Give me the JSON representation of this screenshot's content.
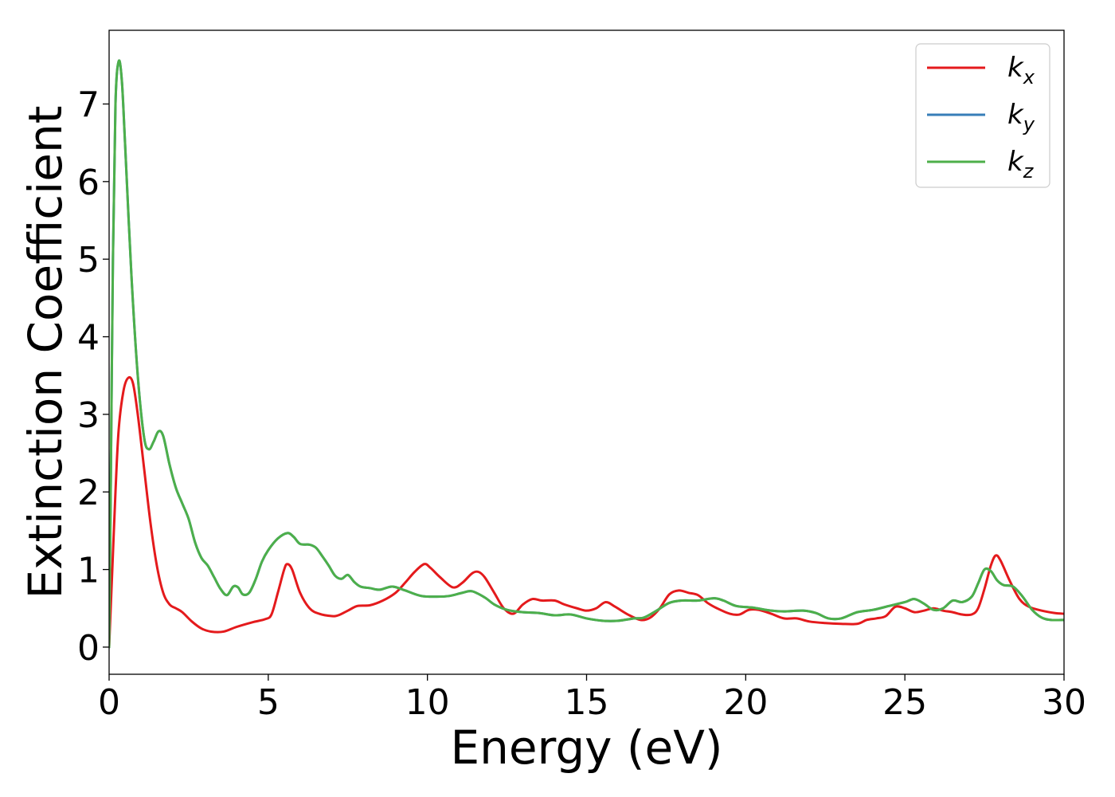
{
  "chart_data": {
    "type": "line",
    "title": "",
    "xlabel": "Energy (eV)",
    "ylabel": "Extinction Coefficient",
    "xlim": [
      0,
      30
    ],
    "ylim": [
      -0.35,
      7.95
    ],
    "xticks": [
      0,
      5,
      10,
      15,
      20,
      25,
      30
    ],
    "yticks": [
      0,
      1,
      2,
      3,
      4,
      5,
      6,
      7
    ],
    "grid": false,
    "legend_position": "top-right",
    "series": [
      {
        "name": "k",
        "subscript": "x",
        "color": "#e41a1c",
        "points": [
          [
            0,
            0
          ],
          [
            0.1,
            1.0
          ],
          [
            0.2,
            2.0
          ],
          [
            0.3,
            2.8
          ],
          [
            0.45,
            3.3
          ],
          [
            0.6,
            3.47
          ],
          [
            0.75,
            3.4
          ],
          [
            0.9,
            3.0
          ],
          [
            1.1,
            2.3
          ],
          [
            1.3,
            1.6
          ],
          [
            1.5,
            1.05
          ],
          [
            1.7,
            0.7
          ],
          [
            1.9,
            0.55
          ],
          [
            2.1,
            0.5
          ],
          [
            2.3,
            0.45
          ],
          [
            2.6,
            0.33
          ],
          [
            2.9,
            0.24
          ],
          [
            3.2,
            0.2
          ],
          [
            3.6,
            0.2
          ],
          [
            4.0,
            0.26
          ],
          [
            4.5,
            0.32
          ],
          [
            4.9,
            0.36
          ],
          [
            5.1,
            0.42
          ],
          [
            5.3,
            0.7
          ],
          [
            5.5,
            1.0
          ],
          [
            5.6,
            1.07
          ],
          [
            5.75,
            1.0
          ],
          [
            6.0,
            0.7
          ],
          [
            6.3,
            0.5
          ],
          [
            6.6,
            0.43
          ],
          [
            7.0,
            0.4
          ],
          [
            7.2,
            0.41
          ],
          [
            7.5,
            0.47
          ],
          [
            7.8,
            0.53
          ],
          [
            8.2,
            0.54
          ],
          [
            8.6,
            0.6
          ],
          [
            9.0,
            0.7
          ],
          [
            9.3,
            0.83
          ],
          [
            9.6,
            0.97
          ],
          [
            9.9,
            1.07
          ],
          [
            10.1,
            1.02
          ],
          [
            10.4,
            0.9
          ],
          [
            10.8,
            0.77
          ],
          [
            11.1,
            0.83
          ],
          [
            11.4,
            0.95
          ],
          [
            11.6,
            0.97
          ],
          [
            11.8,
            0.9
          ],
          [
            12.1,
            0.7
          ],
          [
            12.4,
            0.5
          ],
          [
            12.7,
            0.43
          ],
          [
            13.0,
            0.55
          ],
          [
            13.3,
            0.62
          ],
          [
            13.6,
            0.6
          ],
          [
            14.0,
            0.6
          ],
          [
            14.3,
            0.55
          ],
          [
            14.7,
            0.5
          ],
          [
            15.0,
            0.47
          ],
          [
            15.3,
            0.5
          ],
          [
            15.6,
            0.58
          ],
          [
            15.9,
            0.52
          ],
          [
            16.3,
            0.42
          ],
          [
            16.7,
            0.35
          ],
          [
            17.0,
            0.38
          ],
          [
            17.3,
            0.5
          ],
          [
            17.6,
            0.68
          ],
          [
            17.9,
            0.73
          ],
          [
            18.2,
            0.7
          ],
          [
            18.5,
            0.67
          ],
          [
            18.8,
            0.57
          ],
          [
            19.1,
            0.5
          ],
          [
            19.5,
            0.43
          ],
          [
            19.8,
            0.42
          ],
          [
            20.1,
            0.48
          ],
          [
            20.4,
            0.48
          ],
          [
            20.8,
            0.43
          ],
          [
            21.2,
            0.37
          ],
          [
            21.6,
            0.37
          ],
          [
            22.0,
            0.33
          ],
          [
            22.5,
            0.31
          ],
          [
            23.0,
            0.3
          ],
          [
            23.5,
            0.3
          ],
          [
            23.8,
            0.35
          ],
          [
            24.1,
            0.37
          ],
          [
            24.4,
            0.4
          ],
          [
            24.7,
            0.52
          ],
          [
            25.0,
            0.5
          ],
          [
            25.3,
            0.45
          ],
          [
            25.6,
            0.47
          ],
          [
            25.9,
            0.5
          ],
          [
            26.2,
            0.47
          ],
          [
            26.5,
            0.45
          ],
          [
            26.8,
            0.42
          ],
          [
            27.1,
            0.42
          ],
          [
            27.3,
            0.5
          ],
          [
            27.5,
            0.75
          ],
          [
            27.7,
            1.05
          ],
          [
            27.85,
            1.18
          ],
          [
            28.0,
            1.12
          ],
          [
            28.3,
            0.85
          ],
          [
            28.6,
            0.62
          ],
          [
            28.9,
            0.52
          ],
          [
            29.3,
            0.47
          ],
          [
            29.7,
            0.44
          ],
          [
            30.0,
            0.43
          ]
        ]
      },
      {
        "name": "k",
        "subscript": "y",
        "color": "#377eb8",
        "points": [
          [
            0,
            0
          ],
          [
            0.05,
            2.0
          ],
          [
            0.12,
            5.0
          ],
          [
            0.2,
            7.0
          ],
          [
            0.3,
            7.55
          ],
          [
            0.4,
            7.3
          ],
          [
            0.5,
            6.5
          ],
          [
            0.7,
            4.8
          ],
          [
            0.9,
            3.5
          ],
          [
            1.1,
            2.7
          ],
          [
            1.25,
            2.55
          ],
          [
            1.4,
            2.65
          ],
          [
            1.55,
            2.78
          ],
          [
            1.7,
            2.72
          ],
          [
            1.9,
            2.35
          ],
          [
            2.1,
            2.05
          ],
          [
            2.3,
            1.85
          ],
          [
            2.5,
            1.65
          ],
          [
            2.7,
            1.35
          ],
          [
            2.9,
            1.15
          ],
          [
            3.1,
            1.05
          ],
          [
            3.3,
            0.9
          ],
          [
            3.5,
            0.75
          ],
          [
            3.7,
            0.67
          ],
          [
            3.9,
            0.78
          ],
          [
            4.05,
            0.77
          ],
          [
            4.2,
            0.68
          ],
          [
            4.4,
            0.7
          ],
          [
            4.6,
            0.87
          ],
          [
            4.8,
            1.1
          ],
          [
            5.0,
            1.25
          ],
          [
            5.3,
            1.4
          ],
          [
            5.6,
            1.47
          ],
          [
            5.8,
            1.42
          ],
          [
            6.0,
            1.33
          ],
          [
            6.3,
            1.32
          ],
          [
            6.5,
            1.28
          ],
          [
            6.7,
            1.17
          ],
          [
            6.9,
            1.05
          ],
          [
            7.1,
            0.92
          ],
          [
            7.3,
            0.88
          ],
          [
            7.5,
            0.93
          ],
          [
            7.7,
            0.84
          ],
          [
            7.9,
            0.78
          ],
          [
            8.2,
            0.76
          ],
          [
            8.5,
            0.74
          ],
          [
            8.9,
            0.78
          ],
          [
            9.3,
            0.73
          ],
          [
            9.8,
            0.66
          ],
          [
            10.3,
            0.65
          ],
          [
            10.7,
            0.66
          ],
          [
            11.1,
            0.7
          ],
          [
            11.4,
            0.72
          ],
          [
            11.8,
            0.64
          ],
          [
            12.1,
            0.55
          ],
          [
            12.5,
            0.48
          ],
          [
            13.0,
            0.45
          ],
          [
            13.5,
            0.44
          ],
          [
            14.0,
            0.41
          ],
          [
            14.5,
            0.42
          ],
          [
            15.0,
            0.37
          ],
          [
            15.5,
            0.34
          ],
          [
            16.0,
            0.34
          ],
          [
            16.5,
            0.37
          ],
          [
            16.8,
            0.38
          ],
          [
            17.2,
            0.47
          ],
          [
            17.6,
            0.57
          ],
          [
            18.0,
            0.6
          ],
          [
            18.5,
            0.6
          ],
          [
            19.0,
            0.63
          ],
          [
            19.3,
            0.6
          ],
          [
            19.7,
            0.53
          ],
          [
            20.2,
            0.51
          ],
          [
            20.8,
            0.47
          ],
          [
            21.2,
            0.46
          ],
          [
            21.8,
            0.47
          ],
          [
            22.2,
            0.44
          ],
          [
            22.6,
            0.37
          ],
          [
            23.0,
            0.37
          ],
          [
            23.5,
            0.45
          ],
          [
            24.0,
            0.48
          ],
          [
            24.5,
            0.53
          ],
          [
            25.0,
            0.58
          ],
          [
            25.3,
            0.62
          ],
          [
            25.6,
            0.56
          ],
          [
            25.9,
            0.48
          ],
          [
            26.2,
            0.5
          ],
          [
            26.5,
            0.6
          ],
          [
            26.8,
            0.58
          ],
          [
            27.1,
            0.65
          ],
          [
            27.3,
            0.82
          ],
          [
            27.5,
            1.0
          ],
          [
            27.7,
            0.98
          ],
          [
            27.9,
            0.86
          ],
          [
            28.1,
            0.8
          ],
          [
            28.4,
            0.78
          ],
          [
            28.7,
            0.65
          ],
          [
            29.0,
            0.48
          ],
          [
            29.3,
            0.38
          ],
          [
            29.6,
            0.35
          ],
          [
            30.0,
            0.35
          ]
        ]
      },
      {
        "name": "k",
        "subscript": "z",
        "color": "#4daf4a",
        "points": [
          [
            0,
            0
          ],
          [
            0.05,
            2.0
          ],
          [
            0.12,
            5.0
          ],
          [
            0.2,
            7.0
          ],
          [
            0.3,
            7.55
          ],
          [
            0.4,
            7.3
          ],
          [
            0.5,
            6.5
          ],
          [
            0.7,
            4.8
          ],
          [
            0.9,
            3.5
          ],
          [
            1.1,
            2.7
          ],
          [
            1.25,
            2.55
          ],
          [
            1.4,
            2.65
          ],
          [
            1.55,
            2.78
          ],
          [
            1.7,
            2.72
          ],
          [
            1.9,
            2.35
          ],
          [
            2.1,
            2.05
          ],
          [
            2.3,
            1.85
          ],
          [
            2.5,
            1.65
          ],
          [
            2.7,
            1.35
          ],
          [
            2.9,
            1.15
          ],
          [
            3.1,
            1.05
          ],
          [
            3.3,
            0.9
          ],
          [
            3.5,
            0.75
          ],
          [
            3.7,
            0.67
          ],
          [
            3.9,
            0.78
          ],
          [
            4.05,
            0.77
          ],
          [
            4.2,
            0.68
          ],
          [
            4.4,
            0.7
          ],
          [
            4.6,
            0.87
          ],
          [
            4.8,
            1.1
          ],
          [
            5.0,
            1.25
          ],
          [
            5.3,
            1.4
          ],
          [
            5.6,
            1.47
          ],
          [
            5.8,
            1.42
          ],
          [
            6.0,
            1.33
          ],
          [
            6.3,
            1.32
          ],
          [
            6.5,
            1.28
          ],
          [
            6.7,
            1.17
          ],
          [
            6.9,
            1.05
          ],
          [
            7.1,
            0.92
          ],
          [
            7.3,
            0.88
          ],
          [
            7.5,
            0.93
          ],
          [
            7.7,
            0.84
          ],
          [
            7.9,
            0.78
          ],
          [
            8.2,
            0.76
          ],
          [
            8.5,
            0.74
          ],
          [
            8.9,
            0.78
          ],
          [
            9.3,
            0.73
          ],
          [
            9.8,
            0.66
          ],
          [
            10.3,
            0.65
          ],
          [
            10.7,
            0.66
          ],
          [
            11.1,
            0.7
          ],
          [
            11.4,
            0.72
          ],
          [
            11.8,
            0.64
          ],
          [
            12.1,
            0.55
          ],
          [
            12.5,
            0.48
          ],
          [
            13.0,
            0.45
          ],
          [
            13.5,
            0.44
          ],
          [
            14.0,
            0.41
          ],
          [
            14.5,
            0.42
          ],
          [
            15.0,
            0.37
          ],
          [
            15.5,
            0.34
          ],
          [
            16.0,
            0.34
          ],
          [
            16.5,
            0.37
          ],
          [
            16.8,
            0.38
          ],
          [
            17.2,
            0.47
          ],
          [
            17.6,
            0.57
          ],
          [
            18.0,
            0.6
          ],
          [
            18.5,
            0.6
          ],
          [
            19.0,
            0.63
          ],
          [
            19.3,
            0.6
          ],
          [
            19.7,
            0.53
          ],
          [
            20.2,
            0.51
          ],
          [
            20.8,
            0.47
          ],
          [
            21.2,
            0.46
          ],
          [
            21.8,
            0.47
          ],
          [
            22.2,
            0.44
          ],
          [
            22.6,
            0.37
          ],
          [
            23.0,
            0.37
          ],
          [
            23.5,
            0.45
          ],
          [
            24.0,
            0.48
          ],
          [
            24.5,
            0.53
          ],
          [
            25.0,
            0.58
          ],
          [
            25.3,
            0.62
          ],
          [
            25.6,
            0.56
          ],
          [
            25.9,
            0.48
          ],
          [
            26.2,
            0.5
          ],
          [
            26.5,
            0.6
          ],
          [
            26.8,
            0.58
          ],
          [
            27.1,
            0.65
          ],
          [
            27.3,
            0.82
          ],
          [
            27.5,
            1.0
          ],
          [
            27.7,
            0.98
          ],
          [
            27.9,
            0.86
          ],
          [
            28.1,
            0.8
          ],
          [
            28.4,
            0.78
          ],
          [
            28.7,
            0.65
          ],
          [
            29.0,
            0.48
          ],
          [
            29.3,
            0.38
          ],
          [
            29.6,
            0.35
          ],
          [
            30.0,
            0.35
          ]
        ]
      }
    ]
  }
}
